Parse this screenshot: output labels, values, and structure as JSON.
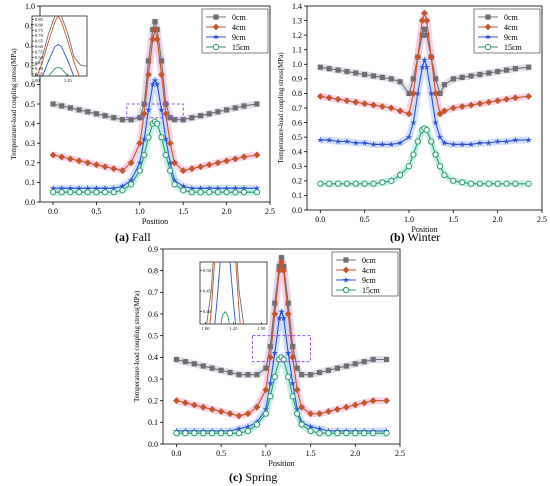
{
  "colors": {
    "0cm": "#6f6f6f",
    "4cm": "#c8552a",
    "9cm": "#2d4fd6",
    "15cm": "#2e9a6e",
    "halo_0cm": "#d8d8e8",
    "halo_4cm": "#f3c9e3",
    "halo_9cm": "#c8d8f7",
    "halo_15cm": "#b9ece9",
    "dash_box": "#9a4fe0"
  },
  "captions": {
    "a": {
      "letter": "(a)",
      "text": " Fall"
    },
    "b": {
      "letter": "(b)",
      "text": " Winter"
    },
    "c": {
      "letter": "(c)",
      "text": " Spring"
    }
  },
  "chart_data": [
    {
      "id": "a",
      "type": "line",
      "xlabel": "Position",
      "ylabel": "Temperature-load coupling stress(MPa)",
      "xlim": [
        -0.15,
        2.5
      ],
      "ylim": [
        0,
        1.0
      ],
      "xticks": [
        "0.0",
        "0.5",
        "1.0",
        "1.5",
        "2.0",
        "2.5"
      ],
      "yticks": [
        "0.0",
        "0.1",
        "0.2",
        "0.3",
        "0.4",
        "0.5",
        "0.6",
        "0.7",
        "0.8",
        "0.9",
        "1.0"
      ],
      "legend_position": "top-right",
      "x": [
        0.0,
        0.1,
        0.2,
        0.3,
        0.4,
        0.5,
        0.6,
        0.7,
        0.8,
        0.9,
        1.0,
        1.05,
        1.1,
        1.15,
        1.175,
        1.2,
        1.25,
        1.3,
        1.35,
        1.4,
        1.5,
        1.6,
        1.7,
        1.8,
        1.9,
        2.0,
        2.1,
        2.2,
        2.35
      ],
      "series": [
        {
          "name": "0cm",
          "marker": "square",
          "values": [
            0.5,
            0.49,
            0.48,
            0.47,
            0.46,
            0.45,
            0.44,
            0.43,
            0.42,
            0.42,
            0.43,
            0.5,
            0.72,
            0.88,
            0.92,
            0.88,
            0.72,
            0.5,
            0.43,
            0.42,
            0.42,
            0.43,
            0.44,
            0.45,
            0.46,
            0.47,
            0.48,
            0.49,
            0.5
          ]
        },
        {
          "name": "4cm",
          "marker": "diamond",
          "values": [
            0.24,
            0.23,
            0.22,
            0.21,
            0.2,
            0.19,
            0.18,
            0.17,
            0.16,
            0.2,
            0.3,
            0.45,
            0.65,
            0.83,
            0.88,
            0.83,
            0.65,
            0.45,
            0.3,
            0.2,
            0.16,
            0.17,
            0.18,
            0.19,
            0.2,
            0.21,
            0.22,
            0.23,
            0.24
          ]
        },
        {
          "name": "9cm",
          "marker": "star",
          "values": [
            0.07,
            0.07,
            0.07,
            0.07,
            0.07,
            0.07,
            0.07,
            0.07,
            0.08,
            0.11,
            0.2,
            0.32,
            0.47,
            0.6,
            0.62,
            0.6,
            0.47,
            0.32,
            0.2,
            0.11,
            0.08,
            0.07,
            0.07,
            0.07,
            0.07,
            0.07,
            0.07,
            0.07,
            0.07
          ]
        },
        {
          "name": "15cm",
          "marker": "circle",
          "values": [
            0.05,
            0.05,
            0.05,
            0.05,
            0.05,
            0.05,
            0.05,
            0.05,
            0.06,
            0.09,
            0.16,
            0.24,
            0.33,
            0.4,
            0.41,
            0.4,
            0.33,
            0.24,
            0.16,
            0.09,
            0.06,
            0.05,
            0.05,
            0.05,
            0.05,
            0.05,
            0.05,
            0.05,
            0.05
          ]
        }
      ],
      "dashed_box": {
        "x": [
          0.85,
          1.5
        ],
        "y": [
          0.43,
          0.5
        ]
      },
      "inset": {
        "xticks": [
          "1.00",
          "1.25"
        ],
        "yticks": [
          "0.35",
          "0.40",
          "0.45",
          "0.50",
          "0.55",
          "0.60",
          "0.65",
          "0.70",
          "0.75",
          "0.80",
          "0.85"
        ]
      }
    },
    {
      "id": "b",
      "type": "line",
      "xlabel": "Position",
      "ylabel": "Temperature-load coupling stress(MPa)",
      "xlim": [
        -0.15,
        2.5
      ],
      "ylim": [
        0,
        1.4
      ],
      "xticks": [
        "0.0",
        "0.5",
        "1.0",
        "1.5",
        "2.0",
        "2.5"
      ],
      "yticks": [
        "0.0",
        "0.1",
        "0.2",
        "0.3",
        "0.4",
        "0.5",
        "0.6",
        "0.7",
        "0.8",
        "0.9",
        "1.0",
        "1.1",
        "1.2",
        "1.3",
        "1.4"
      ],
      "legend_position": "top-right",
      "x": [
        0.0,
        0.1,
        0.2,
        0.3,
        0.4,
        0.5,
        0.6,
        0.7,
        0.8,
        0.9,
        1.0,
        1.05,
        1.1,
        1.15,
        1.175,
        1.2,
        1.25,
        1.3,
        1.35,
        1.4,
        1.5,
        1.6,
        1.7,
        1.8,
        1.9,
        2.0,
        2.1,
        2.2,
        2.35
      ],
      "series": [
        {
          "name": "0cm",
          "marker": "square",
          "values": [
            0.98,
            0.97,
            0.96,
            0.95,
            0.94,
            0.93,
            0.92,
            0.91,
            0.9,
            0.88,
            0.8,
            0.9,
            1.05,
            1.2,
            1.24,
            1.2,
            1.05,
            0.9,
            0.8,
            0.86,
            0.9,
            0.91,
            0.92,
            0.93,
            0.94,
            0.95,
            0.96,
            0.97,
            0.98
          ]
        },
        {
          "name": "4cm",
          "marker": "diamond",
          "values": [
            0.78,
            0.77,
            0.76,
            0.75,
            0.74,
            0.73,
            0.72,
            0.71,
            0.7,
            0.68,
            0.66,
            0.8,
            1.05,
            1.3,
            1.35,
            1.3,
            1.05,
            0.8,
            0.66,
            0.68,
            0.7,
            0.71,
            0.72,
            0.73,
            0.74,
            0.75,
            0.76,
            0.77,
            0.78
          ]
        },
        {
          "name": "9cm",
          "marker": "star",
          "values": [
            0.48,
            0.48,
            0.47,
            0.47,
            0.46,
            0.46,
            0.45,
            0.45,
            0.45,
            0.46,
            0.5,
            0.6,
            0.8,
            0.98,
            1.03,
            0.98,
            0.8,
            0.6,
            0.5,
            0.46,
            0.45,
            0.45,
            0.45,
            0.46,
            0.46,
            0.47,
            0.47,
            0.48,
            0.48
          ]
        },
        {
          "name": "15cm",
          "marker": "circle",
          "values": [
            0.18,
            0.18,
            0.18,
            0.18,
            0.18,
            0.18,
            0.18,
            0.19,
            0.2,
            0.24,
            0.3,
            0.38,
            0.47,
            0.55,
            0.56,
            0.55,
            0.47,
            0.38,
            0.3,
            0.24,
            0.2,
            0.19,
            0.18,
            0.18,
            0.18,
            0.18,
            0.18,
            0.18,
            0.18
          ]
        }
      ]
    },
    {
      "id": "c",
      "type": "line",
      "xlabel": "Position",
      "ylabel": "Temperature-load coupling stress(MPa)",
      "xlim": [
        -0.15,
        2.5
      ],
      "ylim": [
        0,
        0.9
      ],
      "xticks": [
        "0.0",
        "0.5",
        "1.0",
        "1.5",
        "2.0",
        "2.5"
      ],
      "yticks": [
        "0.0",
        "0.1",
        "0.2",
        "0.3",
        "0.4",
        "0.5",
        "0.6",
        "0.7",
        "0.8",
        "0.9"
      ],
      "legend_position": "top-right",
      "x": [
        0.0,
        0.1,
        0.2,
        0.3,
        0.4,
        0.5,
        0.6,
        0.7,
        0.8,
        0.9,
        1.0,
        1.05,
        1.1,
        1.15,
        1.175,
        1.2,
        1.25,
        1.3,
        1.35,
        1.4,
        1.5,
        1.6,
        1.7,
        1.8,
        1.9,
        2.0,
        2.1,
        2.2,
        2.35
      ],
      "series": [
        {
          "name": "0cm",
          "marker": "square",
          "values": [
            0.39,
            0.38,
            0.37,
            0.36,
            0.35,
            0.34,
            0.33,
            0.32,
            0.32,
            0.32,
            0.35,
            0.45,
            0.65,
            0.82,
            0.86,
            0.82,
            0.65,
            0.45,
            0.35,
            0.32,
            0.32,
            0.33,
            0.34,
            0.35,
            0.36,
            0.37,
            0.38,
            0.39,
            0.39
          ]
        },
        {
          "name": "4cm",
          "marker": "diamond",
          "values": [
            0.2,
            0.19,
            0.18,
            0.17,
            0.16,
            0.15,
            0.14,
            0.13,
            0.14,
            0.17,
            0.25,
            0.4,
            0.6,
            0.8,
            0.84,
            0.8,
            0.6,
            0.4,
            0.25,
            0.17,
            0.14,
            0.14,
            0.15,
            0.16,
            0.17,
            0.18,
            0.19,
            0.2,
            0.2
          ]
        },
        {
          "name": "9cm",
          "marker": "star",
          "values": [
            0.06,
            0.06,
            0.06,
            0.06,
            0.06,
            0.06,
            0.06,
            0.07,
            0.08,
            0.1,
            0.16,
            0.28,
            0.42,
            0.58,
            0.61,
            0.58,
            0.42,
            0.28,
            0.16,
            0.1,
            0.08,
            0.07,
            0.06,
            0.06,
            0.06,
            0.06,
            0.06,
            0.06,
            0.06
          ]
        },
        {
          "name": "15cm",
          "marker": "circle",
          "values": [
            0.05,
            0.05,
            0.05,
            0.05,
            0.05,
            0.05,
            0.05,
            0.05,
            0.06,
            0.09,
            0.14,
            0.22,
            0.31,
            0.39,
            0.4,
            0.39,
            0.31,
            0.22,
            0.14,
            0.09,
            0.06,
            0.05,
            0.05,
            0.05,
            0.05,
            0.05,
            0.05,
            0.05,
            0.05
          ]
        }
      ],
      "dashed_box": {
        "x": [
          0.85,
          1.5
        ],
        "y": [
          0.38,
          0.5
        ]
      },
      "inset": {
        "xticks": [
          "1.00",
          "1.25",
          "1.50"
        ],
        "yticks": [
          "0.40",
          "0.45",
          "0.50"
        ]
      }
    }
  ]
}
